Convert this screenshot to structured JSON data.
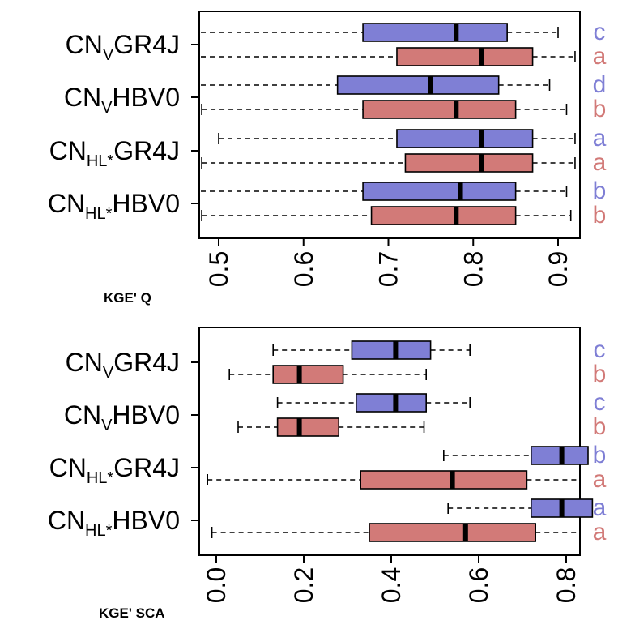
{
  "colors": {
    "blue": "#7F7FD5",
    "red": "#D27A78"
  },
  "chart_data": [
    {
      "type": "boxplot",
      "xlabel": "KGE' Q",
      "xlim": [
        0.47,
        0.98
      ],
      "ticks": [
        "0.5",
        "0.6",
        "0.7",
        "0.8",
        "0.9"
      ],
      "tick_values": [
        0.5,
        0.6,
        0.7,
        0.8,
        0.9
      ],
      "rows": [
        {
          "label_main": "CN",
          "label_sub": "V",
          "label_rest": "GR4J",
          "boxes": [
            {
              "color": "blue",
              "whisker_low": 0.47,
              "q1": 0.67,
              "median": 0.78,
              "q3": 0.84,
              "whisker_high": 0.9,
              "letter": "c"
            },
            {
              "color": "red",
              "whisker_low": 0.47,
              "q1": 0.71,
              "median": 0.81,
              "q3": 0.87,
              "whisker_high": 0.92,
              "letter": "a"
            }
          ]
        },
        {
          "label_main": "CN",
          "label_sub": "V",
          "label_rest": "HBV0",
          "boxes": [
            {
              "color": "blue",
              "whisker_low": 0.47,
              "q1": 0.64,
              "median": 0.75,
              "q3": 0.83,
              "whisker_high": 0.89,
              "letter": "d"
            },
            {
              "color": "red",
              "whisker_low": 0.48,
              "q1": 0.67,
              "median": 0.78,
              "q3": 0.85,
              "whisker_high": 0.91,
              "letter": "b"
            }
          ]
        },
        {
          "label_main": "CN",
          "label_sub": "HL*",
          "label_rest": "GR4J",
          "boxes": [
            {
              "color": "blue",
              "whisker_low": 0.5,
              "q1": 0.71,
              "median": 0.81,
              "q3": 0.87,
              "whisker_high": 0.92,
              "letter": "a"
            },
            {
              "color": "red",
              "whisker_low": 0.48,
              "q1": 0.72,
              "median": 0.81,
              "q3": 0.87,
              "whisker_high": 0.92,
              "letter": "a"
            }
          ]
        },
        {
          "label_main": "CN",
          "label_sub": "HL*",
          "label_rest": "HBV0",
          "boxes": [
            {
              "color": "blue",
              "whisker_low": 0.47,
              "q1": 0.67,
              "median": 0.785,
              "q3": 0.85,
              "whisker_high": 0.91,
              "letter": "b"
            },
            {
              "color": "red",
              "whisker_low": 0.48,
              "q1": 0.68,
              "median": 0.78,
              "q3": 0.85,
              "whisker_high": 0.915,
              "letter": "b"
            }
          ]
        }
      ]
    },
    {
      "type": "boxplot",
      "xlabel": "KGE' SCA",
      "xlim": [
        -0.02,
        0.96
      ],
      "ticks": [
        "0.0",
        "0.2",
        "0.4",
        "0.6",
        "0.8"
      ],
      "tick_values": [
        0.0,
        0.2,
        0.4,
        0.6,
        0.8
      ],
      "rows": [
        {
          "label_main": "CN",
          "label_sub": "V",
          "label_rest": "GR4J",
          "boxes": [
            {
              "color": "blue",
              "whisker_low": 0.13,
              "q1": 0.31,
              "median": 0.41,
              "q3": 0.49,
              "whisker_high": 0.58,
              "letter": "c"
            },
            {
              "color": "red",
              "whisker_low": 0.03,
              "q1": 0.13,
              "median": 0.19,
              "q3": 0.29,
              "whisker_high": 0.48,
              "letter": "b"
            }
          ]
        },
        {
          "label_main": "CN",
          "label_sub": "V",
          "label_rest": "HBV0",
          "boxes": [
            {
              "color": "blue",
              "whisker_low": 0.14,
              "q1": 0.32,
              "median": 0.41,
              "q3": 0.48,
              "whisker_high": 0.58,
              "letter": "c"
            },
            {
              "color": "red",
              "whisker_low": 0.05,
              "q1": 0.14,
              "median": 0.19,
              "q3": 0.28,
              "whisker_high": 0.475,
              "letter": "b"
            }
          ]
        },
        {
          "label_main": "CN",
          "label_sub": "HL*",
          "label_rest": "GR4J",
          "boxes": [
            {
              "color": "blue",
              "whisker_low": 0.52,
              "q1": 0.72,
              "median": 0.79,
              "q3": 0.85,
              "whisker_high": 0.91,
              "letter": "b"
            },
            {
              "color": "red",
              "whisker_low": -0.02,
              "q1": 0.33,
              "median": 0.54,
              "q3": 0.71,
              "whisker_high": 0.86,
              "letter": "a"
            }
          ]
        },
        {
          "label_main": "CN",
          "label_sub": "HL*",
          "label_rest": "HBV0",
          "boxes": [
            {
              "color": "blue",
              "whisker_low": 0.53,
              "q1": 0.72,
              "median": 0.79,
              "q3": 0.86,
              "whisker_high": 0.91,
              "letter": "a"
            },
            {
              "color": "red",
              "whisker_low": -0.01,
              "q1": 0.35,
              "median": 0.57,
              "q3": 0.73,
              "whisker_high": 0.87,
              "letter": "a"
            }
          ]
        }
      ]
    }
  ]
}
